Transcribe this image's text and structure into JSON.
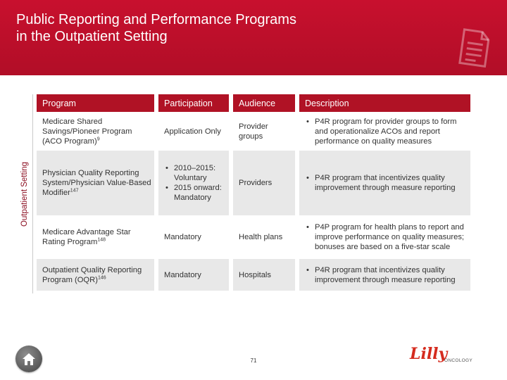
{
  "header": {
    "title": "Public Reporting and Performance Programs\nin the Outpatient Setting"
  },
  "sidebar": {
    "label": "Outpatient Setting"
  },
  "table": {
    "columns": [
      "Program",
      "Participation",
      "Audience",
      "Description"
    ],
    "rows": [
      {
        "program": "Medicare Shared Savings/Pioneer Program (ACO Program)",
        "program_ref": "9",
        "participation": "Application Only",
        "audience": "Provider groups",
        "description": "P4R program for provider groups to form and operationalize ACOs and report performance on quality measures"
      },
      {
        "program": "Physician Quality Reporting System/Physician Value-Based Modifier",
        "program_ref": "147",
        "participation_items": [
          "2010–2015: Voluntary",
          "2015 onward: Mandatory"
        ],
        "audience": "Providers",
        "description": "P4R program that incentivizes quality improvement through measure reporting"
      },
      {
        "program": "Medicare Advantage Star Rating Program",
        "program_ref": "148",
        "participation": "Mandatory",
        "audience": "Health plans",
        "description": "P4P program for health plans to report and improve performance on quality measures; bonuses are based on a five-star scale"
      },
      {
        "program": "Outpatient Quality Reporting Program (OQR)",
        "program_ref": "146",
        "participation": "Mandatory",
        "audience": "Hospitals",
        "description": "P4R program that incentivizes quality improvement through measure reporting"
      }
    ]
  },
  "footer": {
    "page_number": "71",
    "logo_text": "Lilly",
    "logo_subtext": "ONCOLOGY"
  },
  "icons": {
    "home": "home-icon",
    "document": "document-icon"
  },
  "colors": {
    "banner": "#c8102e",
    "header_row": "#b01225",
    "shaded_row": "#e8e8e8",
    "logo": "#d52b1e"
  }
}
